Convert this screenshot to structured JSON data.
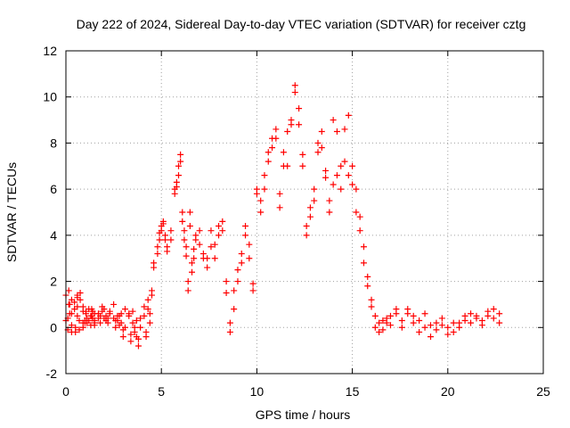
{
  "chart_data": {
    "type": "scatter",
    "title": "Day 222 of 2024, Sidereal Day-to-day VTEC variation (SDTVAR) for receiver cztg",
    "xlabel": "GPS time / hours",
    "ylabel": "SDTVAR / TECUs",
    "xlim": [
      0,
      25
    ],
    "ylim": [
      -2,
      12
    ],
    "x_ticks": [
      "0",
      "5",
      "10",
      "15",
      "20",
      "25"
    ],
    "y_ticks": [
      "-2",
      "0",
      "2",
      "4",
      "6",
      "8",
      "10",
      "12"
    ],
    "grid": true,
    "marker": "plus",
    "series": [
      {
        "name": "SDTVAR",
        "color": "#ff0000",
        "x": [
          0.0,
          0.15,
          0.3,
          0.45,
          0.6,
          0.75,
          0.9,
          1.05,
          1.2,
          1.35,
          1.5,
          1.7,
          1.9,
          2.1,
          2.3,
          2.5,
          2.7,
          2.9,
          3.1,
          3.3,
          3.5,
          3.7,
          3.9,
          4.1,
          4.3,
          4.5,
          0.1,
          0.3,
          0.5,
          0.7,
          0.9,
          1.1,
          1.3,
          1.5,
          1.8,
          2.2,
          2.6,
          3.0,
          3.4,
          3.8,
          4.2,
          0.2,
          0.6,
          1.0,
          1.4,
          2.0,
          2.8,
          3.6,
          4.4,
          4.6,
          4.8,
          4.9,
          5.0,
          5.1,
          5.2,
          5.3,
          5.5,
          5.7,
          5.8,
          5.9,
          6.0,
          6.1,
          6.2,
          6.3,
          6.4,
          6.5,
          6.6,
          6.7,
          6.8,
          7.0,
          7.2,
          7.4,
          7.6,
          7.8,
          8.0,
          8.2,
          8.4,
          8.6,
          8.8,
          9.0,
          9.2,
          9.4,
          9.6,
          9.8,
          10.0,
          10.2,
          10.4,
          10.6,
          10.8,
          11.0,
          11.2,
          11.4,
          11.6,
          11.8,
          12.0,
          12.2,
          12.4,
          12.6,
          12.8,
          13.0,
          13.2,
          13.4,
          13.6,
          13.8,
          14.0,
          14.2,
          14.4,
          14.6,
          14.8,
          15.0,
          15.2,
          15.4,
          15.6,
          15.8,
          16.0,
          16.2,
          16.4,
          16.6,
          16.8,
          17.0,
          17.3,
          17.6,
          17.9,
          18.2,
          18.5,
          18.8,
          19.1,
          19.4,
          19.7,
          20.0,
          20.3,
          20.6,
          20.9,
          21.2,
          21.5,
          21.8,
          22.1,
          22.4,
          22.7
        ],
        "y": [
          0.3,
          1.6,
          1.2,
          0.8,
          1.4,
          1.2,
          0.7,
          0.6,
          0.8,
          0.5,
          0.6,
          0.4,
          0.7,
          0.5,
          0.6,
          0.4,
          0.3,
          0.6,
          0.8,
          0.5,
          0.2,
          -0.4,
          0.4,
          0.9,
          1.2,
          1.6,
          -0.1,
          -0.2,
          0.0,
          -0.1,
          0.2,
          0.4,
          0.1,
          0.3,
          0.5,
          0.2,
          0.0,
          -0.4,
          -0.6,
          -0.8,
          -0.4,
          0.6,
          0.9,
          0.3,
          0.7,
          0.4,
          0.1,
          -0.2,
          0.2,
          2.6,
          3.2,
          3.8,
          4.2,
          4.5,
          4.0,
          3.5,
          4.2,
          6.0,
          6.3,
          7.0,
          7.5,
          5.0,
          4.2,
          3.5,
          1.6,
          5.0,
          2.4,
          3.0,
          3.8,
          4.2,
          3.2,
          2.6,
          3.5,
          3.0,
          4.0,
          4.6,
          1.5,
          -0.2,
          0.8,
          2.5,
          3.2,
          4.4,
          3.0,
          1.6,
          6.0,
          5.5,
          6.6,
          7.2,
          8.2,
          8.6,
          5.2,
          7.0,
          8.5,
          9.0,
          10.5,
          9.5,
          7.5,
          4.0,
          4.8,
          5.5,
          8.0,
          8.5,
          6.5,
          5.0,
          9.0,
          8.5,
          7.0,
          8.6,
          9.2,
          7.0,
          6.0,
          4.8,
          3.5,
          2.2,
          1.2,
          0.5,
          0.2,
          -0.1,
          0.4,
          0.1,
          0.6,
          0.3,
          0.8,
          0.5,
          0.3,
          0.6,
          0.1,
          0.2,
          0.4,
          -0.3,
          0.2,
          0.0,
          0.3,
          0.6,
          0.5,
          0.3,
          0.7,
          0.8,
          0.6
        ],
        "y2": [
          1.4,
          1.0,
          0.6,
          1.1,
          1.3,
          1.5,
          0.9,
          0.7,
          0.3,
          0.8,
          0.2,
          0.6,
          0.9,
          0.3,
          0.7,
          1.0,
          0.5,
          0.2,
          0.0,
          0.6,
          0.7,
          0.3,
          0.0,
          0.5,
          0.8,
          1.4,
          0.4,
          0.1,
          -0.2,
          0.3,
          0.0,
          0.2,
          0.5,
          0.1,
          0.2,
          0.4,
          0.3,
          -0.1,
          -0.3,
          -0.5,
          -0.2,
          1.0,
          0.5,
          0.2,
          0.4,
          0.8,
          0.5,
          0.0,
          0.6,
          2.8,
          3.5,
          4.1,
          4.4,
          4.6,
          3.8,
          3.3,
          3.8,
          5.8,
          6.1,
          6.6,
          7.2,
          4.6,
          3.8,
          3.1,
          2.0,
          4.4,
          2.8,
          3.4,
          4.0,
          3.6,
          3.0,
          3.0,
          4.2,
          3.6,
          4.4,
          4.2,
          2.0,
          0.2,
          1.6,
          2.0,
          2.8,
          4.0,
          3.6,
          1.9,
          5.8,
          5.0,
          6.0,
          7.6,
          7.8,
          8.2,
          5.8,
          7.6,
          7.0,
          8.8,
          10.2,
          8.8,
          7.0,
          4.4,
          5.2,
          6.0,
          7.6,
          7.8,
          6.8,
          5.5,
          6.2,
          6.6,
          6.0,
          7.2,
          6.6,
          6.2,
          5.0,
          4.2,
          2.8,
          1.8,
          0.9,
          0.0,
          -0.2,
          0.3,
          0.2,
          0.5,
          0.8,
          0.0,
          0.6,
          0.2,
          -0.2,
          0.0,
          -0.4,
          -0.1,
          0.1,
          0.0,
          -0.2,
          0.2,
          0.5,
          0.2,
          0.4,
          0.1,
          0.5,
          0.4,
          0.2
        ]
      }
    ]
  }
}
